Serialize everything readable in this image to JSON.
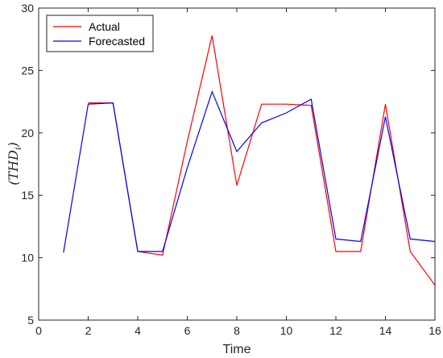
{
  "chart_data": {
    "type": "line",
    "xlabel": "Time",
    "ylabel": "(THD",
    "ylabel_sub": "i",
    "ylabel_close": ")",
    "xlim": [
      0,
      16
    ],
    "ylim": [
      5,
      30
    ],
    "xticks": [
      0,
      2,
      4,
      6,
      8,
      10,
      12,
      14,
      16
    ],
    "yticks": [
      5,
      10,
      15,
      20,
      25,
      30
    ],
    "grid": false,
    "legend_position": "top-left",
    "x": [
      1,
      2,
      3,
      4,
      5,
      6,
      7,
      8,
      9,
      10,
      11,
      12,
      13,
      14,
      15,
      16
    ],
    "series": [
      {
        "name": "Actual",
        "color": "#ff0000",
        "values": [
          null,
          22.4,
          22.4,
          10.5,
          10.2,
          19.3,
          27.8,
          15.8,
          22.3,
          22.3,
          22.2,
          10.5,
          10.5,
          22.3,
          10.5,
          7.8
        ]
      },
      {
        "name": "Forecasted",
        "color": "#0000ff",
        "values": [
          10.4,
          22.3,
          22.4,
          10.5,
          10.5,
          17.2,
          23.3,
          18.5,
          20.8,
          21.6,
          22.7,
          11.5,
          11.3,
          21.3,
          11.5,
          11.3
        ]
      }
    ]
  }
}
